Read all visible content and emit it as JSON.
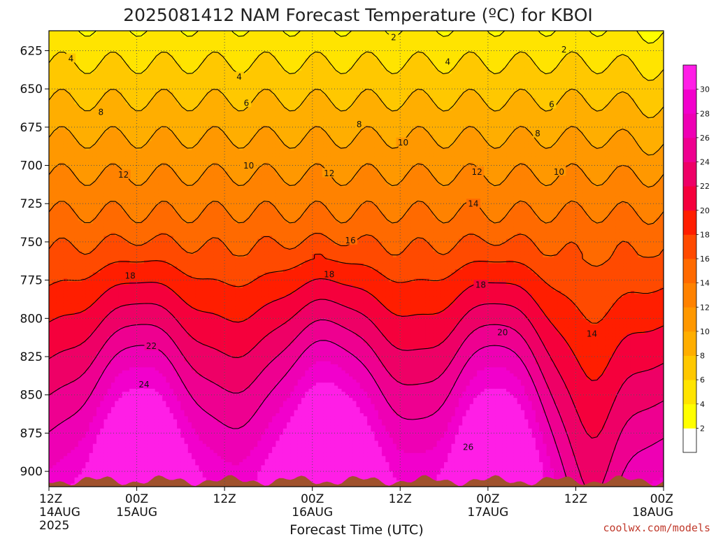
{
  "chart_data": {
    "type": "heatmap",
    "title": "2025081412 NAM Forecast Temperature (ºC) for KBOI",
    "xlabel": "Forecast Time (UTC)",
    "ylabel": "",
    "credit": "coolwx.com/models",
    "x_range_hours": [
      0,
      84
    ],
    "y_range_hpa": [
      910,
      612
    ],
    "y_axis_inverted": true,
    "y_ticks": [
      {
        "value": 625,
        "label": "625"
      },
      {
        "value": 650,
        "label": "650"
      },
      {
        "value": 675,
        "label": "675"
      },
      {
        "value": 700,
        "label": "700"
      },
      {
        "value": 725,
        "label": "725"
      },
      {
        "value": 750,
        "label": "750"
      },
      {
        "value": 775,
        "label": "775"
      },
      {
        "value": 800,
        "label": "800"
      },
      {
        "value": 825,
        "label": "825"
      },
      {
        "value": 850,
        "label": "850"
      },
      {
        "value": 875,
        "label": "875"
      },
      {
        "value": 900,
        "label": "900"
      }
    ],
    "x_ticks": [
      {
        "hour": 0,
        "lines": [
          "12Z",
          "14AUG",
          "2025"
        ]
      },
      {
        "hour": 12,
        "lines": [
          "00Z",
          "15AUG"
        ]
      },
      {
        "hour": 24,
        "lines": [
          "12Z"
        ]
      },
      {
        "hour": 36,
        "lines": [
          "00Z",
          "16AUG"
        ]
      },
      {
        "hour": 48,
        "lines": [
          "12Z"
        ]
      },
      {
        "hour": 60,
        "lines": [
          "00Z",
          "17AUG"
        ]
      },
      {
        "hour": 72,
        "lines": [
          "12Z"
        ]
      },
      {
        "hour": 84,
        "lines": [
          "00Z",
          "18AUG"
        ]
      }
    ],
    "grid": true,
    "colorbar": {
      "position": "right",
      "levels": [
        0,
        2,
        4,
        6,
        8,
        10,
        12,
        14,
        16,
        18,
        20,
        22,
        24,
        26,
        28,
        30,
        32
      ],
      "labels": [
        "2",
        "4",
        "6",
        "8",
        "10",
        "12",
        "14",
        "16",
        "18",
        "20",
        "22",
        "24",
        "26",
        "28",
        "30"
      ],
      "colors": [
        "#ffffff",
        "#ffff00",
        "#ffe400",
        "#ffc800",
        "#ffae00",
        "#ff9800",
        "#ff8200",
        "#ff6a00",
        "#ff4a00",
        "#ff1e00",
        "#f5003c",
        "#ee0066",
        "#ee0090",
        "#ee00b4",
        "#f200cc",
        "#ff1ee6"
      ]
    },
    "contour_levels": [
      2,
      4,
      6,
      8,
      10,
      12,
      14,
      16,
      18,
      20,
      22,
      24,
      26
    ],
    "contour_labels": [
      {
        "text": "2",
        "hour": 47.1,
        "p": 616
      },
      {
        "text": "2",
        "hour": 70.4,
        "p": 624
      },
      {
        "text": "4",
        "hour": 3.0,
        "p": 630
      },
      {
        "text": "4",
        "hour": 26.0,
        "p": 642
      },
      {
        "text": "4",
        "hour": 54.5,
        "p": 632
      },
      {
        "text": "6",
        "hour": 27.0,
        "p": 659
      },
      {
        "text": "6",
        "hour": 68.7,
        "p": 660
      },
      {
        "text": "8",
        "hour": 7.1,
        "p": 665
      },
      {
        "text": "8",
        "hour": 42.4,
        "p": 673
      },
      {
        "text": "8",
        "hour": 66.8,
        "p": 679
      },
      {
        "text": "10",
        "hour": 48.4,
        "p": 685
      },
      {
        "text": "10",
        "hour": 27.3,
        "p": 700
      },
      {
        "text": "10",
        "hour": 69.7,
        "p": 704
      },
      {
        "text": "12",
        "hour": 10.2,
        "p": 706
      },
      {
        "text": "12",
        "hour": 38.3,
        "p": 705
      },
      {
        "text": "12",
        "hour": 58.5,
        "p": 704
      },
      {
        "text": "14",
        "hour": 58.0,
        "p": 725
      },
      {
        "text": "14",
        "hour": 74.2,
        "p": 810
      },
      {
        "text": "16",
        "hour": 41.2,
        "p": 749
      },
      {
        "text": "18",
        "hour": 11.1,
        "p": 772
      },
      {
        "text": "18",
        "hour": 38.3,
        "p": 771
      },
      {
        "text": "18",
        "hour": 59.0,
        "p": 778
      },
      {
        "text": "20",
        "hour": 62.0,
        "p": 809
      },
      {
        "text": "22",
        "hour": 14.0,
        "p": 818
      },
      {
        "text": "24",
        "hour": 13.0,
        "p": 843
      },
      {
        "text": "26",
        "hour": 57.3,
        "p": 884
      }
    ],
    "series": [
      {
        "hours": [
          0,
          12,
          24,
          36,
          48,
          60,
          72,
          84
        ],
        "note_free": true
      }
    ]
  }
}
